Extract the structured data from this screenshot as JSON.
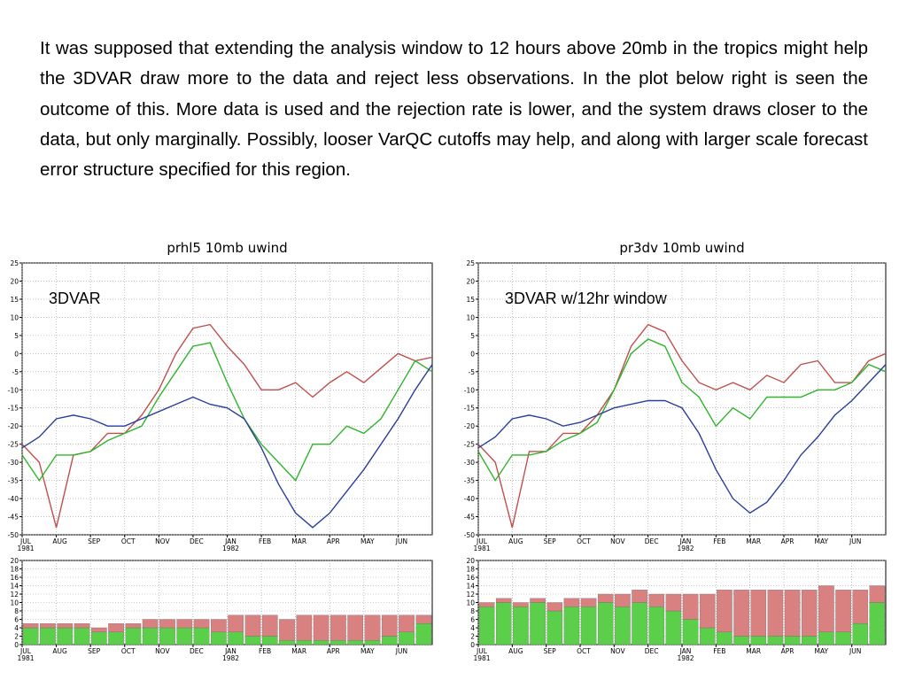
{
  "text": "It was supposed that extending the analysis window to 12 hours above 20mb in the tropics might help the 3DVAR draw more to the data and reject less observations. In the plot below right is seen the outcome of this. More data is used and the rejection rate is lower, and the system draws closer to the data, but only marginally. Possibly, looser VarQC cutoffs may help, and along with larger scale forecast error structure specified for this region.",
  "chart_data": [
    {
      "type": "line",
      "title": "prhl5 10mb uwind",
      "annotation": "3DVAR",
      "x": [
        0,
        0.5,
        1,
        1.5,
        2,
        2.5,
        3,
        3.5,
        4,
        4.5,
        5,
        5.5,
        6,
        6.5,
        7,
        7.5,
        8,
        8.5,
        9,
        9.5,
        10,
        10.5,
        11,
        11.5,
        12
      ],
      "xlim": [
        0,
        12
      ],
      "xticks": [
        {
          "value": 0,
          "label": "JUL\n1981"
        },
        {
          "value": 1,
          "label": "AUG"
        },
        {
          "value": 2,
          "label": "SEP"
        },
        {
          "value": 3,
          "label": "OCT"
        },
        {
          "value": 4,
          "label": "NOV"
        },
        {
          "value": 5,
          "label": "DEC"
        },
        {
          "value": 6,
          "label": "JAN\n1982"
        },
        {
          "value": 7,
          "label": "FEB"
        },
        {
          "value": 8,
          "label": "MAR"
        },
        {
          "value": 9,
          "label": "APR"
        },
        {
          "value": 10,
          "label": "MAY"
        },
        {
          "value": 11,
          "label": "JUN"
        }
      ],
      "ylim": [
        -50,
        25
      ],
      "yticks": [
        -50,
        -45,
        -40,
        -35,
        -30,
        -25,
        -20,
        -15,
        -10,
        -5,
        0,
        5,
        10,
        15,
        20,
        25
      ],
      "grid": true,
      "series": [
        {
          "color": "#c0504d",
          "values": [
            -25,
            -30,
            -48,
            -28,
            -27,
            -22,
            -22,
            -17,
            -10,
            0,
            7,
            8,
            2,
            -3,
            -10,
            -10,
            -8,
            -12,
            -8,
            -5,
            -8,
            -4,
            0,
            -2,
            -1
          ]
        },
        {
          "color": "#2fb52a",
          "values": [
            -28,
            -35,
            -28,
            -28,
            -27,
            -24,
            -22,
            -20,
            -12,
            -5,
            2,
            3,
            -8,
            -18,
            -25,
            -30,
            -35,
            -25,
            -25,
            -20,
            -22,
            -18,
            -10,
            -2,
            -5
          ]
        },
        {
          "color": "#2b3f9c",
          "values": [
            -26,
            -23,
            -18,
            -17,
            -18,
            -20,
            -20,
            -18,
            -16,
            -14,
            -12,
            -14,
            -15,
            -18,
            -26,
            -36,
            -44,
            -48,
            -44,
            -38,
            -32,
            -25,
            -18,
            -10,
            -3
          ]
        }
      ]
    },
    {
      "type": "line",
      "title": "pr3dv 10mb uwind",
      "annotation": "3DVAR w/12hr window",
      "x": [
        0,
        0.5,
        1,
        1.5,
        2,
        2.5,
        3,
        3.5,
        4,
        4.5,
        5,
        5.5,
        6,
        6.5,
        7,
        7.5,
        8,
        8.5,
        9,
        9.5,
        10,
        10.5,
        11,
        11.5,
        12
      ],
      "xlim": [
        0,
        12
      ],
      "xticks": [
        {
          "value": 0,
          "label": "JUL\n1981"
        },
        {
          "value": 1,
          "label": "AUG"
        },
        {
          "value": 2,
          "label": "SEP"
        },
        {
          "value": 3,
          "label": "OCT"
        },
        {
          "value": 4,
          "label": "NOV"
        },
        {
          "value": 5,
          "label": "DEC"
        },
        {
          "value": 6,
          "label": "JAN\n1982"
        },
        {
          "value": 7,
          "label": "FEB"
        },
        {
          "value": 8,
          "label": "MAR"
        },
        {
          "value": 9,
          "label": "APR"
        },
        {
          "value": 10,
          "label": "MAY"
        },
        {
          "value": 11,
          "label": "JUN"
        }
      ],
      "ylim": [
        -50,
        25
      ],
      "yticks": [
        -50,
        -45,
        -40,
        -35,
        -30,
        -25,
        -20,
        -15,
        -10,
        -5,
        0,
        5,
        10,
        15,
        20,
        25
      ],
      "grid": true,
      "series": [
        {
          "color": "#c0504d",
          "values": [
            -25,
            -30,
            -48,
            -27,
            -27,
            -22,
            -22,
            -17,
            -10,
            2,
            8,
            6,
            -2,
            -8,
            -10,
            -8,
            -10,
            -6,
            -8,
            -3,
            -2,
            -8,
            -8,
            -2,
            0
          ]
        },
        {
          "color": "#2fb52a",
          "values": [
            -27,
            -35,
            -28,
            -28,
            -27,
            -24,
            -22,
            -19,
            -10,
            0,
            4,
            2,
            -8,
            -12,
            -20,
            -15,
            -18,
            -12,
            -12,
            -12,
            -10,
            -10,
            -8,
            -3,
            -5
          ]
        },
        {
          "color": "#2b3f9c",
          "values": [
            -26,
            -23,
            -18,
            -17,
            -18,
            -20,
            -19,
            -17,
            -15,
            -14,
            -13,
            -13,
            -15,
            -22,
            -32,
            -40,
            -44,
            -41,
            -35,
            -28,
            -23,
            -17,
            -13,
            -8,
            -3
          ]
        }
      ]
    },
    {
      "type": "bar",
      "stacked": true,
      "x": [
        0.25,
        0.75,
        1.25,
        1.75,
        2.25,
        2.75,
        3.25,
        3.75,
        4.25,
        4.75,
        5.25,
        5.75,
        6.25,
        6.75,
        7.25,
        7.75,
        8.25,
        8.75,
        9.25,
        9.75,
        10.25,
        10.75,
        11.25,
        11.75
      ],
      "xlim": [
        0,
        12
      ],
      "xticks": [
        {
          "value": 0,
          "label": "JUL\n1981"
        },
        {
          "value": 1,
          "label": "AUG"
        },
        {
          "value": 2,
          "label": "SEP"
        },
        {
          "value": 3,
          "label": "OCT"
        },
        {
          "value": 4,
          "label": "NOV"
        },
        {
          "value": 5,
          "label": "DEC"
        },
        {
          "value": 6,
          "label": "JAN\n1982"
        },
        {
          "value": 7,
          "label": "FEB"
        },
        {
          "value": 8,
          "label": "MAR"
        },
        {
          "value": 9,
          "label": "APR"
        },
        {
          "value": 10,
          "label": "MAY"
        },
        {
          "value": 11,
          "label": "JUN"
        }
      ],
      "ylim": [
        0,
        20
      ],
      "yticks": [
        0,
        2,
        4,
        6,
        8,
        10,
        12,
        14,
        16,
        18,
        20
      ],
      "grid": true,
      "series": [
        {
          "color": "#5ccf4a",
          "values": [
            4,
            4,
            4,
            4,
            3,
            3,
            4,
            4,
            4,
            4,
            4,
            3,
            3,
            2,
            2,
            1,
            1,
            1,
            1,
            1,
            1,
            2,
            3,
            5
          ]
        },
        {
          "color": "#d98080",
          "values": [
            1,
            1,
            1,
            1,
            1,
            2,
            1,
            2,
            2,
            2,
            2,
            3,
            4,
            5,
            5,
            5,
            6,
            6,
            6,
            6,
            6,
            5,
            4,
            2
          ]
        }
      ]
    },
    {
      "type": "bar",
      "stacked": true,
      "x": [
        0.25,
        0.75,
        1.25,
        1.75,
        2.25,
        2.75,
        3.25,
        3.75,
        4.25,
        4.75,
        5.25,
        5.75,
        6.25,
        6.75,
        7.25,
        7.75,
        8.25,
        8.75,
        9.25,
        9.75,
        10.25,
        10.75,
        11.25,
        11.75
      ],
      "xlim": [
        0,
        12
      ],
      "xticks": [
        {
          "value": 0,
          "label": "JUL\n1981"
        },
        {
          "value": 1,
          "label": "AUG"
        },
        {
          "value": 2,
          "label": "SEP"
        },
        {
          "value": 3,
          "label": "OCT"
        },
        {
          "value": 4,
          "label": "NOV"
        },
        {
          "value": 5,
          "label": "DEC"
        },
        {
          "value": 6,
          "label": "JAN\n1982"
        },
        {
          "value": 7,
          "label": "FEB"
        },
        {
          "value": 8,
          "label": "MAR"
        },
        {
          "value": 9,
          "label": "APR"
        },
        {
          "value": 10,
          "label": "MAY"
        },
        {
          "value": 11,
          "label": "JUN"
        }
      ],
      "ylim": [
        0,
        20
      ],
      "yticks": [
        0,
        2,
        4,
        6,
        8,
        10,
        12,
        14,
        16,
        18,
        20
      ],
      "grid": true,
      "series": [
        {
          "color": "#5ccf4a",
          "values": [
            9,
            10,
            9,
            10,
            8,
            9,
            9,
            10,
            9,
            10,
            9,
            8,
            6,
            4,
            3,
            2,
            2,
            2,
            2,
            2,
            3,
            3,
            5,
            10
          ]
        },
        {
          "color": "#d98080",
          "values": [
            1,
            1,
            1,
            1,
            2,
            2,
            2,
            2,
            3,
            3,
            3,
            4,
            6,
            8,
            10,
            11,
            11,
            11,
            11,
            11,
            11,
            10,
            8,
            4
          ]
        }
      ]
    }
  ]
}
